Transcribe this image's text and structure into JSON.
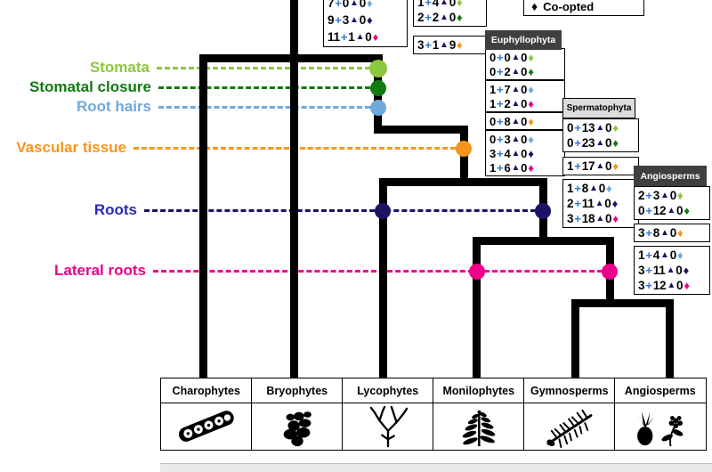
{
  "colors": {
    "tree": "#000000",
    "background": "#FFFFFF",
    "clade_header_dark": "#3F3F3F",
    "clade_header_light": "#DCDCDC"
  },
  "legend": {
    "symbol": "♦",
    "label": "Co-opted"
  },
  "symbols": {
    "gained": "+",
    "lost": "▲",
    "coopted": "♦"
  },
  "symbol_colors": {
    "gained": "#2E74D9",
    "lost": "#1B1464"
  },
  "traits": [
    {
      "label": "Stomata",
      "color": "#8DC63F"
    },
    {
      "label": "Stomatal closure",
      "color": "#117A11"
    },
    {
      "label": "Root hairs",
      "color": "#6FA8DC"
    },
    {
      "label": "Vascular tissue",
      "color": "#F7941E"
    },
    {
      "label": "Roots",
      "color": "#2A2AB5",
      "node_color": "#1B1464"
    },
    {
      "label": "Lateral roots",
      "color": "#EC008C"
    }
  ],
  "clade_headers": [
    {
      "label": "Euphyllophyta"
    },
    {
      "label": "Spermatophyta"
    },
    {
      "label": "Angiosperms"
    }
  ],
  "gene_boxes": [
    {
      "rows": [
        {
          "gained": "7",
          "lost": "0",
          "coopted": "0",
          "diamond": "#6FA8DC"
        },
        {
          "gained": "9",
          "lost": "3",
          "coopted": "0",
          "diamond": "#1B1464"
        },
        {
          "gained": "11",
          "lost": "1",
          "coopted": "0",
          "diamond": "#EC008C"
        }
      ]
    },
    {
      "rows": [
        {
          "gained": "1",
          "lost": "4",
          "coopted": "0",
          "diamond": "#8DC63F"
        },
        {
          "gained": "2",
          "lost": "2",
          "coopted": "0",
          "diamond": "#117A11"
        }
      ]
    },
    {
      "rows": [
        {
          "gained": "3",
          "lost": "1",
          "coopted": "9",
          "diamond": "#F7941E"
        }
      ]
    },
    {
      "rows": [
        {
          "gained": "0",
          "lost": "0",
          "coopted": "0",
          "diamond": "#8DC63F"
        },
        {
          "gained": "0",
          "lost": "2",
          "coopted": "0",
          "diamond": "#117A11"
        }
      ]
    },
    {
      "rows": [
        {
          "gained": "1",
          "lost": "7",
          "coopted": "0",
          "diamond": "#6FA8DC"
        },
        {
          "gained": "1",
          "lost": "2",
          "coopted": "0",
          "diamond": "#EC008C"
        }
      ]
    },
    {
      "rows": [
        {
          "gained": "0",
          "lost": "8",
          "coopted": "0",
          "diamond": "#F7941E"
        }
      ]
    },
    {
      "rows": [
        {
          "gained": "0",
          "lost": "3",
          "coopted": "0",
          "diamond": "#6FA8DC"
        },
        {
          "gained": "3",
          "lost": "4",
          "coopted": "0",
          "diamond": "#1B1464"
        },
        {
          "gained": "1",
          "lost": "6",
          "coopted": "0",
          "diamond": "#EC008C"
        }
      ]
    },
    {
      "rows": [
        {
          "gained": "0",
          "lost": "13",
          "coopted": "0",
          "diamond": "#8DC63F"
        },
        {
          "gained": "0",
          "lost": "23",
          "coopted": "0",
          "diamond": "#117A11"
        }
      ]
    },
    {
      "rows": [
        {
          "gained": "1",
          "lost": "17",
          "coopted": "0",
          "diamond": "#F7941E"
        }
      ]
    },
    {
      "rows": [
        {
          "gained": "1",
          "lost": "8",
          "coopted": "0",
          "diamond": "#6FA8DC"
        },
        {
          "gained": "2",
          "lost": "11",
          "coopted": "0",
          "diamond": "#1B1464"
        },
        {
          "gained": "3",
          "lost": "18",
          "coopted": "0",
          "diamond": "#EC008C"
        }
      ]
    },
    {
      "rows": [
        {
          "gained": "2",
          "lost": "3",
          "coopted": "0",
          "diamond": "#8DC63F"
        },
        {
          "gained": "0",
          "lost": "12",
          "coopted": "0",
          "diamond": "#117A11"
        }
      ]
    },
    {
      "rows": [
        {
          "gained": "3",
          "lost": "8",
          "coopted": "0",
          "diamond": "#F7941E"
        }
      ]
    },
    {
      "rows": [
        {
          "gained": "1",
          "lost": "4",
          "coopted": "0",
          "diamond": "#6FA8DC"
        },
        {
          "gained": "3",
          "lost": "11",
          "coopted": "0",
          "diamond": "#1B1464"
        },
        {
          "gained": "3",
          "lost": "12",
          "coopted": "0",
          "diamond": "#EC008C"
        }
      ]
    }
  ],
  "taxa": [
    {
      "name": "Charophytes"
    },
    {
      "name": "Bryophytes"
    },
    {
      "name": "Lycophytes"
    },
    {
      "name": "Monilophytes"
    },
    {
      "name": "Gymnosperms"
    },
    {
      "name": "Angiosperms"
    }
  ]
}
